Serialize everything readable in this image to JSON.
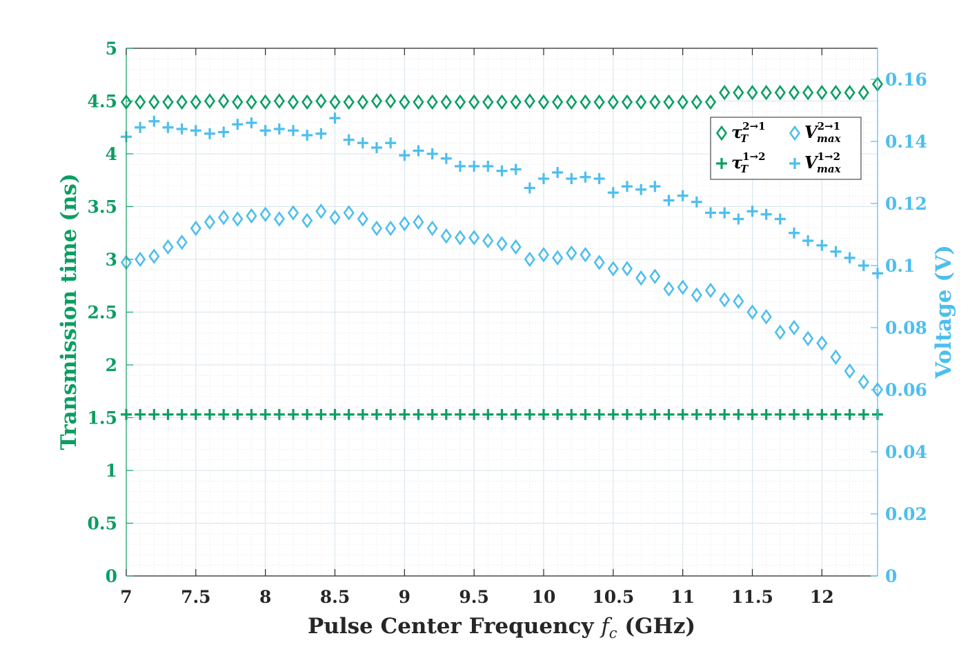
{
  "chart_data": {
    "type": "scatter",
    "colors": {
      "left": "#0b9e62",
      "right": "#4dbeee",
      "axis_dark": "#262626",
      "grid_major": "#d6e3ea",
      "grid_minor": "#dcdcdc"
    },
    "xlabel": "Pulse Center Frequency fc (GHz)",
    "xlabel_parts": {
      "before": "Pulse Center Frequency ",
      "var": "f",
      "sub": "c",
      "after": " (GHz)"
    },
    "ylabel_left": "Transmission time (ns)",
    "ylabel_right": "Voltage (V)",
    "xlim": [
      7,
      12.4
    ],
    "ylim_left": [
      0,
      5
    ],
    "ylim_right": [
      0,
      0.17
    ],
    "x_ticks": [
      "7",
      "7.5",
      "8",
      "8.5",
      "9",
      "9.5",
      "10",
      "10.5",
      "11",
      "11.5",
      "12"
    ],
    "y_left_ticks": [
      "0",
      "0.5",
      "1",
      "1.5",
      "2",
      "2.5",
      "3",
      "3.5",
      "4",
      "4.5",
      "5"
    ],
    "y_right_ticks": [
      "0",
      "0.02",
      "0.04",
      "0.06",
      "0.08",
      "0.1",
      "0.12",
      "0.14",
      "0.16"
    ],
    "x": [
      7.0,
      7.1,
      7.2,
      7.3,
      7.4,
      7.5,
      7.6,
      7.7,
      7.8,
      7.9,
      8.0,
      8.1,
      8.2,
      8.3,
      8.4,
      8.5,
      8.6,
      8.7,
      8.8,
      8.9,
      9.0,
      9.1,
      9.2,
      9.3,
      9.4,
      9.5,
      9.6,
      9.7,
      9.8,
      9.9,
      10.0,
      10.1,
      10.2,
      10.3,
      10.4,
      10.5,
      10.6,
      10.7,
      10.8,
      10.9,
      11.0,
      11.1,
      11.2,
      11.3,
      11.4,
      11.5,
      11.6,
      11.7,
      11.8,
      11.9,
      12.0,
      12.1,
      12.2,
      12.3,
      12.4
    ],
    "series": [
      {
        "name": "tau_T 2->1",
        "axis": "left",
        "marker": "diamond",
        "legend": {
          "base": "τ",
          "sub": "T",
          "sup": "2→1"
        },
        "values": [
          4.49,
          4.49,
          4.49,
          4.49,
          4.49,
          4.49,
          4.5,
          4.5,
          4.49,
          4.49,
          4.49,
          4.5,
          4.49,
          4.49,
          4.5,
          4.49,
          4.49,
          4.49,
          4.5,
          4.5,
          4.49,
          4.49,
          4.49,
          4.49,
          4.49,
          4.49,
          4.49,
          4.49,
          4.49,
          4.5,
          4.49,
          4.49,
          4.49,
          4.49,
          4.49,
          4.49,
          4.49,
          4.49,
          4.49,
          4.49,
          4.49,
          4.49,
          4.49,
          4.58,
          4.58,
          4.58,
          4.58,
          4.58,
          4.58,
          4.58,
          4.58,
          4.58,
          4.58,
          4.58,
          4.66
        ]
      },
      {
        "name": "tau_T 1->2",
        "axis": "left",
        "marker": "plus",
        "legend": {
          "base": "τ",
          "sub": "T",
          "sup": "1→2"
        },
        "values": [
          1.53,
          1.53,
          1.53,
          1.53,
          1.53,
          1.53,
          1.53,
          1.53,
          1.53,
          1.53,
          1.53,
          1.53,
          1.53,
          1.53,
          1.53,
          1.53,
          1.53,
          1.53,
          1.53,
          1.53,
          1.53,
          1.53,
          1.53,
          1.53,
          1.53,
          1.53,
          1.53,
          1.53,
          1.53,
          1.53,
          1.53,
          1.53,
          1.53,
          1.53,
          1.53,
          1.53,
          1.53,
          1.53,
          1.53,
          1.53,
          1.53,
          1.53,
          1.53,
          1.53,
          1.53,
          1.53,
          1.53,
          1.53,
          1.53,
          1.53,
          1.53,
          1.53,
          1.53,
          1.53,
          1.53
        ]
      },
      {
        "name": "V_max 2->1",
        "axis": "right",
        "marker": "diamond",
        "legend": {
          "base": "V",
          "sub": "max",
          "sup": "2→1"
        },
        "values": [
          0.101,
          0.102,
          0.103,
          0.106,
          0.1075,
          0.112,
          0.114,
          0.1155,
          0.115,
          0.116,
          0.1165,
          0.115,
          0.117,
          0.1145,
          0.1175,
          0.1155,
          0.117,
          0.115,
          0.112,
          0.112,
          0.1135,
          0.114,
          0.112,
          0.1095,
          0.109,
          0.109,
          0.108,
          0.107,
          0.106,
          0.102,
          0.1035,
          0.1025,
          0.104,
          0.1035,
          0.101,
          0.099,
          0.099,
          0.096,
          0.0965,
          0.0925,
          0.093,
          0.0905,
          0.092,
          0.089,
          0.0885,
          0.085,
          0.0835,
          0.0785,
          0.08,
          0.0765,
          0.075,
          0.0705,
          0.066,
          0.0625,
          0.06
        ]
      },
      {
        "name": "V_max 1->2",
        "axis": "right",
        "marker": "plus",
        "legend": {
          "base": "V",
          "sub": "max",
          "sup": "1→2"
        },
        "values": [
          0.1415,
          0.1445,
          0.1465,
          0.1445,
          0.144,
          0.1435,
          0.1425,
          0.143,
          0.1455,
          0.146,
          0.1435,
          0.144,
          0.1435,
          0.142,
          0.1425,
          0.1475,
          0.1405,
          0.1395,
          0.138,
          0.1395,
          0.1355,
          0.137,
          0.136,
          0.1345,
          0.132,
          0.132,
          0.132,
          0.1305,
          0.131,
          0.125,
          0.128,
          0.13,
          0.128,
          0.1285,
          0.128,
          0.1235,
          0.1255,
          0.1245,
          0.1255,
          0.121,
          0.1225,
          0.1205,
          0.117,
          0.117,
          0.115,
          0.1175,
          0.1165,
          0.115,
          0.1105,
          0.108,
          0.1065,
          0.1045,
          0.1025,
          0.1,
          0.0975
        ]
      }
    ],
    "legend_placement": "top-right",
    "grid": true
  }
}
